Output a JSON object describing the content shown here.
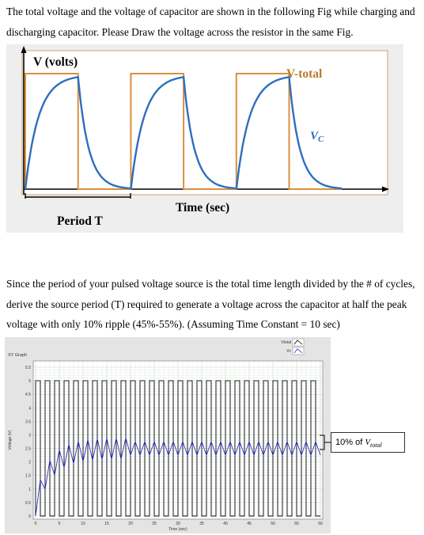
{
  "question_intro": "The total voltage and the voltage of capacitor are shown in the following Fig while charging and discharging capacitor. Please Draw the voltage across the resistor in the same Fig.",
  "question_ripple": "Since the period of your pulsed voltage source is the total time length divided by the # of cycles, derive the source period (T) required to generate a voltage across the capacitor at half the peak voltage with only 10% ripple (45%-55%). (Assuming Time Constant = 10 sec)",
  "figure1": {
    "y_axis_label": "V (volts)",
    "x_axis_label": "Time (sec)",
    "period_label": "Period T",
    "v_total_label": "V-total",
    "vc_label_main": "V",
    "vc_label_sub": "C",
    "colors": {
      "v_total": "#d9903e",
      "vc": "#2c6fbf",
      "frame": "#c8a271",
      "background": "#eeeeee"
    }
  },
  "figure2": {
    "title": "XY Graph",
    "ylabel": "Voltage (V)",
    "xlabel": "Time (sec)",
    "legend": [
      "Vtotal",
      "Vc"
    ],
    "callout_prefix": "10% of ",
    "callout_var_main": "V",
    "callout_var_sub": "total",
    "colors": {
      "square": "#000000",
      "vc": "#2c2cc8",
      "plot_bg": "#ffffff",
      "grid": "#c8d8c8",
      "frame": "#c0c0c0"
    }
  },
  "chart_data": [
    {
      "type": "line",
      "xlabel": "Time (sec)",
      "ylabel": "V (volts)",
      "series": [
        {
          "name": "V-total",
          "x": [
            0,
            0,
            1,
            1,
            2,
            2,
            3,
            3,
            4,
            4,
            5,
            5,
            6
          ],
          "y": [
            0,
            1,
            1,
            0,
            0,
            1,
            1,
            0,
            0,
            1,
            1,
            0,
            0
          ]
        },
        {
          "name": "Vc",
          "shape": "rc-charge-discharge",
          "cycles": 3,
          "peak": 0.97
        }
      ],
      "grid": false
    },
    {
      "type": "line",
      "title": "XY Graph",
      "xlabel": "Time (sec)",
      "ylabel": "Voltage (V)",
      "xlim": [
        0,
        60
      ],
      "ylim": [
        0,
        5.5
      ],
      "x_ticks": [
        0,
        5,
        10,
        15,
        20,
        25,
        30,
        35,
        40,
        45,
        50,
        55,
        60
      ],
      "y_ticks": [
        0,
        0.5,
        1,
        1.5,
        2,
        2.5,
        3,
        3.5,
        4,
        4.5,
        5,
        5.5
      ],
      "series": [
        {
          "name": "Vtotal",
          "shape": "square-wave",
          "low": 0,
          "high": 5,
          "period": 2,
          "x_start": 0,
          "x_end": 60
        },
        {
          "name": "Vc",
          "shape": "ripple",
          "start": 0,
          "settle_low": 2.25,
          "settle_high": 2.75,
          "period": 2
        }
      ],
      "grid": true,
      "legend": "top-right",
      "annotations": [
        {
          "text": "10% of V total",
          "at_y": 2.75
        }
      ]
    }
  ]
}
